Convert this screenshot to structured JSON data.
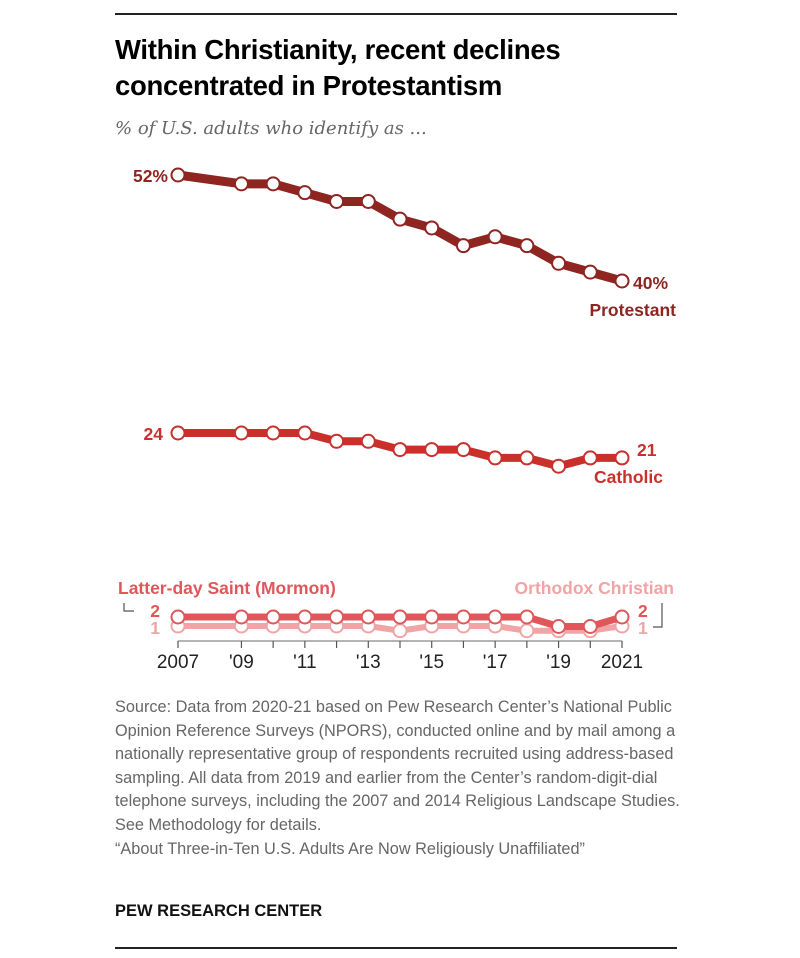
{
  "header": {
    "title": "Within Christianity, recent declines concentrated in Protestantism",
    "subtitle": "% of U.S. adults who identify as ..."
  },
  "chart_data": {
    "type": "line",
    "title": "Within Christianity, recent declines concentrated in Protestantism",
    "subtitle": "% of U.S. adults who identify as ...",
    "xlabel": "",
    "ylabel": "",
    "grid": false,
    "legend": "direct-labels",
    "x": [
      2007,
      2009,
      2010,
      2011,
      2012,
      2013,
      2014,
      2015,
      2016,
      2017,
      2018,
      2019,
      2020,
      2021
    ],
    "x_tick_labels": [
      "2007",
      "'09",
      "",
      "'11",
      "",
      "'13",
      "",
      "'15",
      "",
      "'17",
      "",
      "'19",
      "",
      "2021"
    ],
    "series": [
      {
        "name": "Protestant",
        "color": "#8f2521",
        "values": [
          52,
          51,
          51,
          50,
          49,
          49,
          47,
          46,
          44,
          45,
          44,
          42,
          41,
          40
        ],
        "start_label": "52%",
        "end_label": "40%",
        "name_label": "Protestant"
      },
      {
        "name": "Catholic",
        "color": "#c9302c",
        "values": [
          24,
          24,
          24,
          24,
          23,
          23,
          22,
          22,
          22,
          21,
          21,
          20,
          21,
          21
        ],
        "start_label": "24",
        "end_label": "21",
        "name_label": "Catholic"
      },
      {
        "name": "Latter-day Saint (Mormon)",
        "color": "#e0575b",
        "values": [
          2,
          2,
          2,
          2,
          2,
          2,
          2,
          2,
          2,
          2,
          2,
          1,
          1,
          2
        ],
        "start_label": "2",
        "end_label": "2",
        "name_label": "Latter-day Saint (Mormon)"
      },
      {
        "name": "Orthodox Christian",
        "color": "#f0a4a5",
        "values": [
          1,
          1,
          1,
          1,
          1,
          1,
          0.5,
          1,
          1,
          1,
          0.5,
          0.5,
          0.5,
          1
        ],
        "start_label": "1",
        "end_label": "1",
        "name_label": "Orthodox Christian"
      }
    ]
  },
  "footer": {
    "source_lines": [
      "Source: Data from 2020-21 based on Pew Research Center’s National Public Opinion Reference Surveys (NPORS), conducted online and by mail among a nationally representative group of respondents recruited using address-based sampling. All data from 2019 and earlier from the Center’s random-digit-dial telephone surveys, including the 2007 and 2014 Religious Landscape Studies.",
      "See Methodology for details.",
      "“About Three-in-Ten U.S. Adults Are Now Religiously Unaffiliated”"
    ],
    "brand": "PEW RESEARCH CENTER"
  }
}
